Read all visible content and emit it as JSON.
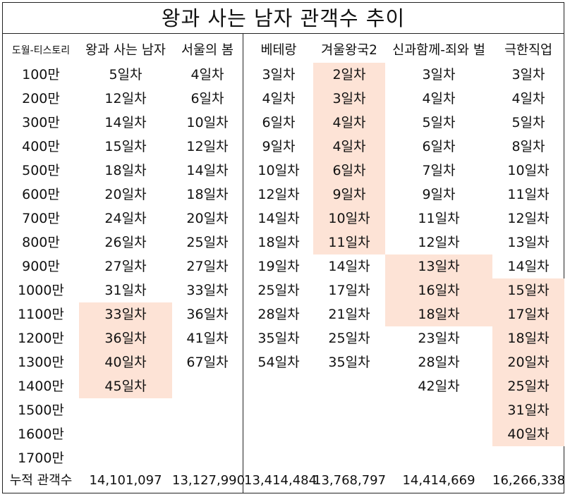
{
  "title": "왕과 사는 남자 관객수 추이",
  "header_label": "도월-티스토리",
  "total_label": "누적 관객수",
  "highlight_color": "#fde3d6",
  "row_labels": [
    "100만",
    "200만",
    "300만",
    "400만",
    "500만",
    "600만",
    "700만",
    "800만",
    "900만",
    "1000만",
    "1100만",
    "1200만",
    "1300만",
    "1400만",
    "1500만",
    "1600만",
    "1700만"
  ],
  "films": [
    {
      "name": "왕과 사는 남자",
      "days": [
        "5일차",
        "12일차",
        "14일차",
        "15일차",
        "18일차",
        "20일차",
        "24일차",
        "26일차",
        "27일차",
        "31일차",
        "33일차",
        "36일차",
        "40일차",
        "45일차",
        "",
        "",
        ""
      ],
      "highlight": [
        false,
        false,
        false,
        false,
        false,
        false,
        false,
        false,
        false,
        false,
        true,
        true,
        true,
        true,
        false,
        false,
        false
      ],
      "total": "14,101,097"
    },
    {
      "name": "서울의 봄",
      "days": [
        "4일차",
        "6일차",
        "10일차",
        "12일차",
        "14일차",
        "18일차",
        "20일차",
        "25일차",
        "27일차",
        "33일차",
        "36일차",
        "41일차",
        "67일차",
        "",
        "",
        "",
        ""
      ],
      "highlight": [
        false,
        false,
        false,
        false,
        false,
        false,
        false,
        false,
        false,
        false,
        false,
        false,
        false,
        false,
        false,
        false,
        false
      ],
      "total": "13,127,990"
    },
    {
      "name": "베테랑",
      "days": [
        "3일차",
        "4일차",
        "6일차",
        "9일차",
        "10일차",
        "12일차",
        "14일차",
        "18일차",
        "19일차",
        "25일차",
        "28일차",
        "35일차",
        "54일차",
        "",
        "",
        "",
        ""
      ],
      "highlight": [
        false,
        false,
        false,
        false,
        false,
        false,
        false,
        false,
        false,
        false,
        false,
        false,
        false,
        false,
        false,
        false,
        false
      ],
      "total": "13,414,484"
    },
    {
      "name": "겨울왕국2",
      "days": [
        "2일차",
        "3일차",
        "4일차",
        "4일차",
        "6일차",
        "9일차",
        "10일차",
        "11일차",
        "14일차",
        "17일차",
        "21일차",
        "25일차",
        "35일차",
        "",
        "",
        "",
        ""
      ],
      "highlight": [
        true,
        true,
        true,
        true,
        true,
        true,
        true,
        true,
        false,
        false,
        false,
        false,
        false,
        false,
        false,
        false,
        false
      ],
      "total": "13,768,797"
    },
    {
      "name": "신과함께-죄와 벌",
      "days": [
        "3일차",
        "4일차",
        "5일차",
        "6일차",
        "7일차",
        "9일차",
        "11일차",
        "12일차",
        "13일차",
        "16일차",
        "18일차",
        "23일차",
        "28일차",
        "42일차",
        "",
        "",
        ""
      ],
      "highlight": [
        false,
        false,
        false,
        false,
        false,
        false,
        false,
        false,
        true,
        true,
        true,
        false,
        false,
        false,
        false,
        false,
        false
      ],
      "total": "14,414,669"
    },
    {
      "name": "극한직업",
      "days": [
        "3일차",
        "4일차",
        "5일차",
        "8일차",
        "10일차",
        "11일차",
        "12일차",
        "13일차",
        "14일차",
        "15일차",
        "17일차",
        "18일차",
        "20일차",
        "25일차",
        "31일차",
        "40일차",
        ""
      ],
      "highlight": [
        false,
        false,
        false,
        false,
        false,
        false,
        false,
        false,
        false,
        true,
        true,
        true,
        true,
        true,
        true,
        true,
        false
      ],
      "total": "16,266,338"
    }
  ]
}
